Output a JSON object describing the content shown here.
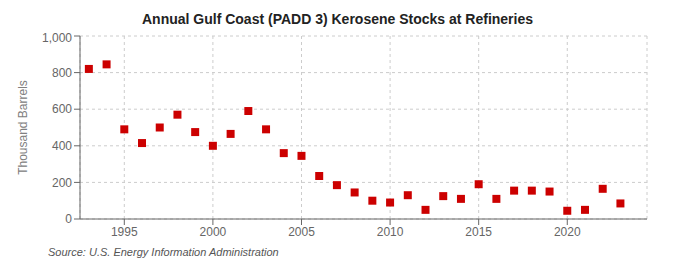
{
  "chart_data": {
    "type": "scatter",
    "title": "Annual Gulf Coast (PADD 3) Kerosene Stocks at Refineries",
    "y_label": "Thousand Barrels",
    "annotations": [
      "Source: U.S. Energy Information Administration"
    ],
    "x": [
      1993,
      1994,
      1995,
      1996,
      1997,
      1998,
      1999,
      2000,
      2001,
      2002,
      2003,
      2004,
      2005,
      2006,
      2007,
      2008,
      2009,
      2010,
      2011,
      2012,
      2013,
      2014,
      2015,
      2016,
      2017,
      2018,
      2019,
      2020,
      2021,
      2022,
      2023
    ],
    "values": [
      820,
      845,
      490,
      415,
      500,
      570,
      475,
      400,
      465,
      590,
      490,
      360,
      345,
      235,
      185,
      145,
      100,
      90,
      130,
      50,
      125,
      110,
      190,
      110,
      155,
      155,
      150,
      45,
      50,
      165,
      85
    ],
    "color": "#cc0000",
    "marker": "square",
    "xlim": [
      1992.5,
      2024.5
    ],
    "xticks": [
      1995,
      2000,
      2005,
      2010,
      2015,
      2020
    ],
    "ylim": [
      0,
      1000
    ],
    "yticks": [
      0,
      200,
      400,
      600,
      800,
      {
        "value": 1000,
        "label": "1,000"
      }
    ],
    "grid": true
  }
}
